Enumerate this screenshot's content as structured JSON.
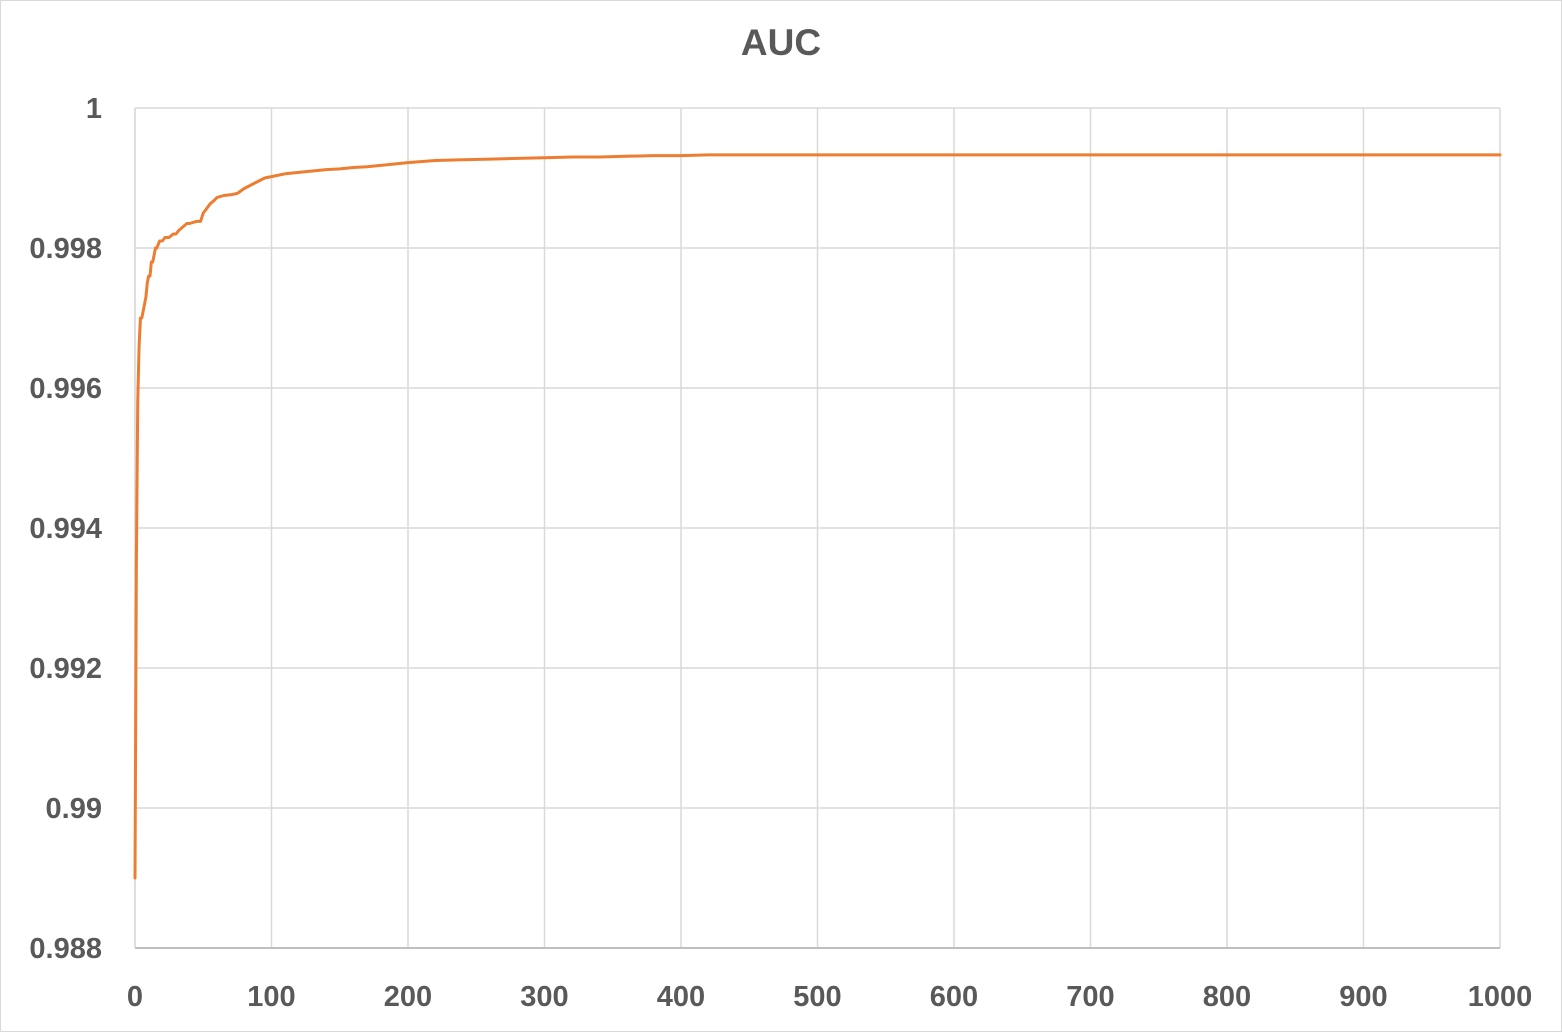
{
  "chart_data": {
    "type": "line",
    "title": "AUC",
    "xlabel": "",
    "ylabel": "",
    "xlim": [
      0,
      1000
    ],
    "ylim": [
      0.988,
      1
    ],
    "x_ticks": [
      0,
      100,
      200,
      300,
      400,
      500,
      600,
      700,
      800,
      900,
      1000
    ],
    "x_tick_labels": [
      "0",
      "100",
      "200",
      "300",
      "400",
      "500",
      "600",
      "700",
      "800",
      "900",
      "1000"
    ],
    "y_ticks": [
      0.988,
      0.99,
      0.992,
      0.994,
      0.996,
      0.998,
      1
    ],
    "y_tick_labels": [
      "0.988",
      "0.99",
      "0.992",
      "0.994",
      "0.996",
      "0.998",
      "1"
    ],
    "grid": true,
    "legend": "none",
    "series": [
      {
        "color": "#ed7d31",
        "x": [
          0,
          1,
          2,
          3,
          4,
          5,
          6,
          7,
          8,
          9,
          10,
          11,
          12,
          13,
          14,
          15,
          16,
          17,
          18,
          20,
          22,
          25,
          28,
          30,
          32,
          35,
          38,
          40,
          45,
          48,
          50,
          52,
          55,
          58,
          60,
          65,
          70,
          75,
          80,
          85,
          90,
          95,
          100,
          110,
          120,
          130,
          140,
          150,
          160,
          170,
          180,
          190,
          200,
          220,
          240,
          260,
          280,
          300,
          320,
          340,
          360,
          380,
          400,
          420,
          450,
          500,
          600,
          700,
          800,
          900,
          1000
        ],
        "y": [
          0.989,
          0.9935,
          0.9958,
          0.9966,
          0.997,
          0.997,
          0.9971,
          0.9972,
          0.9973,
          0.9975,
          0.9976,
          0.9976,
          0.9978,
          0.9978,
          0.9979,
          0.998,
          0.998,
          0.99805,
          0.9981,
          0.9981,
          0.99815,
          0.99815,
          0.9982,
          0.9982,
          0.99825,
          0.9983,
          0.99835,
          0.99835,
          0.99838,
          0.99838,
          0.9985,
          0.99855,
          0.99863,
          0.99868,
          0.99872,
          0.99875,
          0.99876,
          0.99878,
          0.99885,
          0.9989,
          0.99895,
          0.999,
          0.99902,
          0.99906,
          0.99908,
          0.9991,
          0.99912,
          0.99913,
          0.99915,
          0.99916,
          0.99918,
          0.9992,
          0.99922,
          0.99925,
          0.99926,
          0.99927,
          0.99928,
          0.99929,
          0.9993,
          0.9993,
          0.99931,
          0.99932,
          0.99932,
          0.99933,
          0.99933,
          0.99933,
          0.99933,
          0.99933,
          0.99933,
          0.99933,
          0.99933
        ]
      }
    ]
  }
}
